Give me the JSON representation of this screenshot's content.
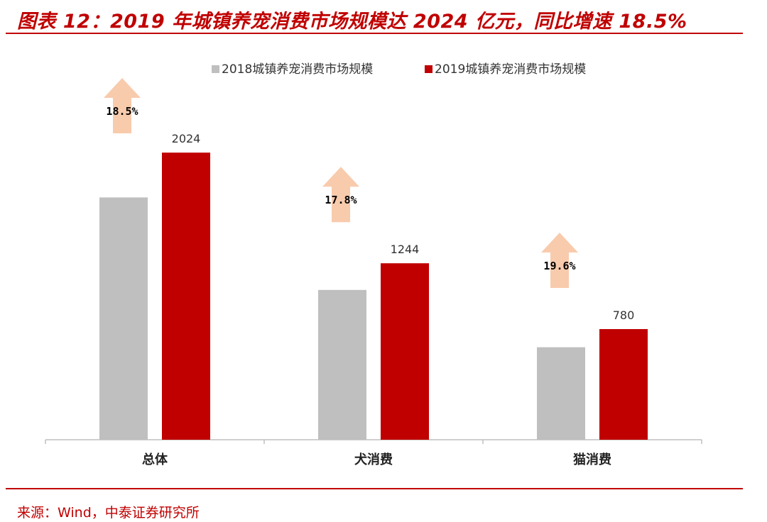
{
  "header": {
    "title": "图表 12：2019 年城镇养宠消费市场规模达 2024 亿元，同比增速 18.5%"
  },
  "footer": {
    "source": "来源：Wind，中泰证券研究所"
  },
  "colors": {
    "accent": "#c00000",
    "series_2018": "#bfbfbf",
    "series_2019": "#c00000",
    "arrow": "#f8cbad"
  },
  "chart_data": {
    "type": "bar",
    "categories": [
      "总体",
      "犬消费",
      "猫消费"
    ],
    "series": [
      {
        "name": "2018城镇养宠消费市场规模",
        "values": [
          1708,
          1056,
          652
        ]
      },
      {
        "name": "2019城镇养宠消费市场规模",
        "values": [
          2024,
          1244,
          780
        ]
      }
    ],
    "data_labels": [
      "2024",
      "1244",
      "780"
    ],
    "growth_labels": [
      "18.5%",
      "17.8%",
      "19.6%"
    ],
    "ylim": [
      0,
      2350
    ],
    "legend": "top-center",
    "grid": false
  }
}
